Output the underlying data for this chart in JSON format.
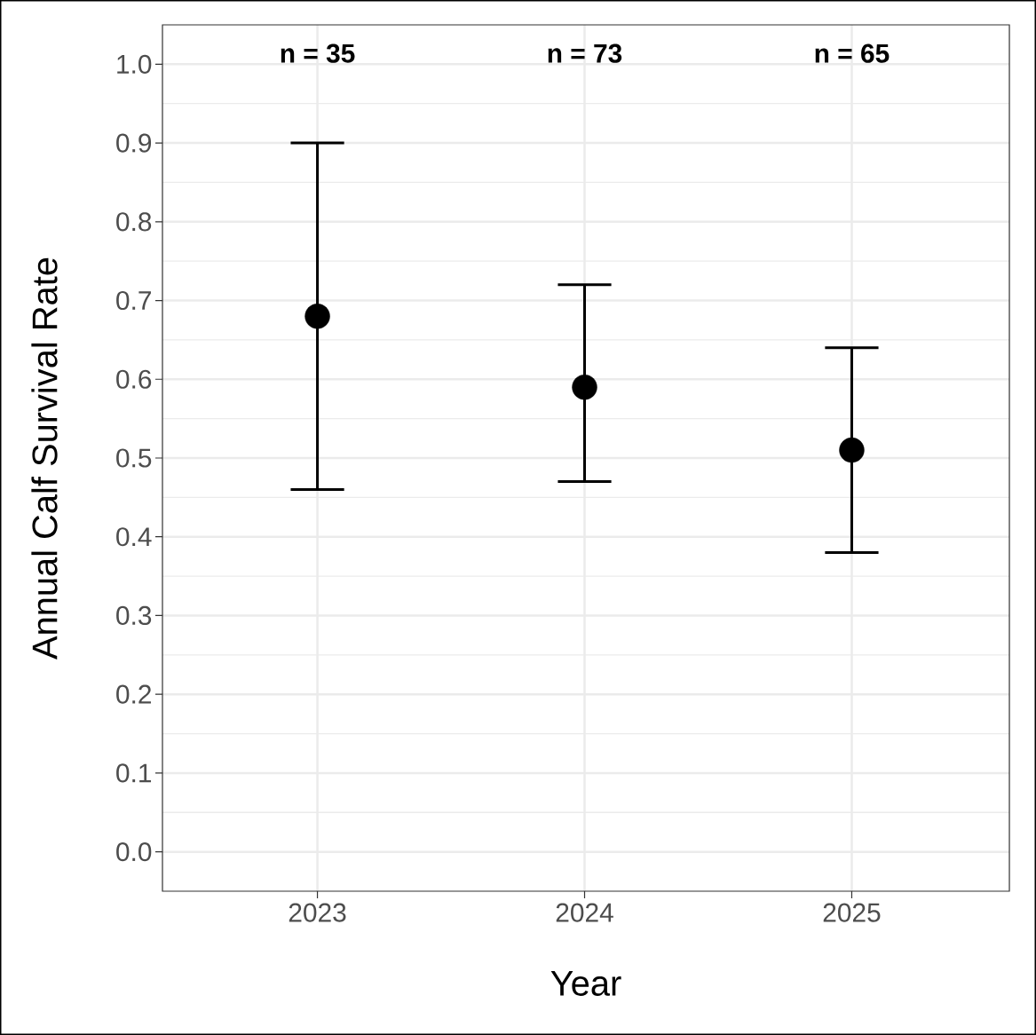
{
  "chart_data": {
    "type": "scatter",
    "ylabel": "Annual Calf Survival Rate",
    "xlabel": "Year",
    "categories": [
      "2023",
      "2024",
      "2025"
    ],
    "values": [
      0.68,
      0.59,
      0.51
    ],
    "errors": [
      [
        0.46,
        0.9
      ],
      [
        0.47,
        0.72
      ],
      [
        0.38,
        0.64
      ]
    ],
    "color": "#000000",
    "marker": "circle",
    "ylim": [
      -0.05,
      1.05
    ],
    "yticks": [
      {
        "value": 0,
        "label": "0.0"
      },
      {
        "value": 0.1,
        "label": "0.1"
      },
      {
        "value": 0.2,
        "label": "0.2"
      },
      {
        "value": 0.3,
        "label": "0.3"
      },
      {
        "value": 0.4,
        "label": "0.4"
      },
      {
        "value": 0.5,
        "label": "0.5"
      },
      {
        "value": 0.6,
        "label": "0.6"
      },
      {
        "value": 0.7,
        "label": "0.7"
      },
      {
        "value": 0.8,
        "label": "0.8"
      },
      {
        "value": 0.9,
        "label": "0.9"
      },
      {
        "value": 1,
        "label": "1.0"
      }
    ],
    "grid": true,
    "annotations": [
      "n = 35",
      "n = 73",
      "n = 65"
    ]
  }
}
